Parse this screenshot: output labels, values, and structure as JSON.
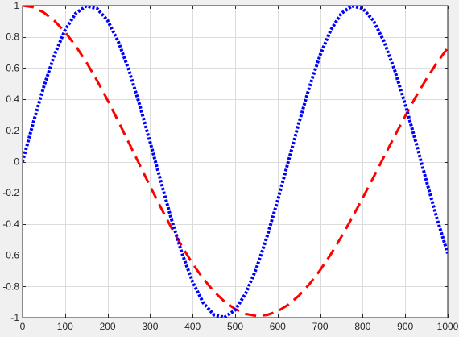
{
  "chart_data": {
    "type": "line",
    "title": "",
    "xlabel": "",
    "ylabel": "",
    "xlim": [
      0,
      1000
    ],
    "ylim": [
      -1,
      1
    ],
    "x_ticks": [
      0,
      100,
      200,
      300,
      400,
      500,
      600,
      700,
      800,
      900,
      1000
    ],
    "x_tick_labels": [
      "0",
      "100",
      "200",
      "300",
      "400",
      "500",
      "600",
      "700",
      "800",
      "900",
      "1000"
    ],
    "y_ticks": [
      -1,
      -0.8,
      -0.6,
      -0.4,
      -0.2,
      0,
      0.2,
      0.4,
      0.6,
      0.8,
      1
    ],
    "y_tick_labels": [
      "-1",
      "-0.8",
      "-0.6",
      "-0.4",
      "-0.2",
      "0",
      "0.2",
      "0.4",
      "0.6",
      "0.8",
      "1"
    ],
    "grid": true,
    "x": [
      0,
      25,
      50,
      75,
      100,
      125,
      150,
      175,
      200,
      225,
      250,
      275,
      300,
      325,
      350,
      375,
      400,
      425,
      450,
      475,
      500,
      525,
      550,
      575,
      600,
      625,
      650,
      675,
      700,
      725,
      750,
      775,
      800,
      825,
      850,
      875,
      900,
      925,
      950,
      975,
      1000
    ],
    "series": [
      {
        "color": "#ff0000",
        "style": "dashed",
        "values": [
          1.0,
          0.99,
          0.956,
          0.903,
          0.831,
          0.742,
          0.638,
          0.521,
          0.394,
          0.26,
          0.121,
          -0.018,
          -0.158,
          -0.293,
          -0.423,
          -0.544,
          -0.654,
          -0.75,
          -0.832,
          -0.897,
          -0.945,
          -0.976,
          -0.989,
          -0.983,
          -0.959,
          -0.917,
          -0.859,
          -0.784,
          -0.695,
          -0.594,
          -0.481,
          -0.36,
          -0.233,
          -0.102,
          0.031,
          0.163,
          0.292,
          0.416,
          0.531,
          0.636,
          0.729
        ]
      },
      {
        "color": "#0000ff",
        "style": "dotted",
        "values": [
          0.0,
          0.248,
          0.481,
          0.684,
          0.844,
          0.951,
          0.998,
          0.982,
          0.905,
          0.771,
          0.588,
          0.368,
          0.125,
          -0.125,
          -0.368,
          -0.588,
          -0.771,
          -0.905,
          -0.982,
          -0.998,
          -0.951,
          -0.844,
          -0.684,
          -0.481,
          -0.248,
          0.0,
          0.248,
          0.481,
          0.684,
          0.844,
          0.951,
          0.998,
          0.982,
          0.905,
          0.771,
          0.588,
          0.368,
          0.125,
          -0.125,
          -0.368,
          -0.588
        ]
      }
    ],
    "colors": {
      "background": "#f0f0f0",
      "plot_area": "#ffffff",
      "grid": "#dcdcdc",
      "axis": "#262626"
    }
  }
}
